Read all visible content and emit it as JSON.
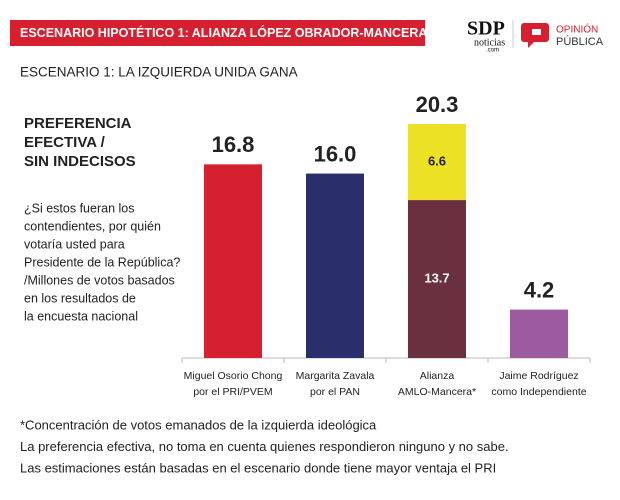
{
  "header": {
    "title": "ESCENARIO HIPOTÉTICO 1: ALIANZA LÓPEZ OBRADOR-MANCERA",
    "logo_sdp": [
      "SDP",
      "noticias",
      ".com"
    ],
    "logo_op": [
      "OPINIÓN",
      "PÚBLICA"
    ]
  },
  "chart_data": {
    "type": "bar",
    "title": "ESCENARIO 1: LA IZQUIERDA UNIDA GANA",
    "heading": [
      "PREFERENCIA",
      "EFECTIVA /",
      "SIN INDECISOS"
    ],
    "question": [
      "¿Si estos fueran los",
      "contendientes, por quién",
      "votaría usted para",
      "Presidente de la República?",
      "/Millones de votos basados",
      "en los resultados de",
      "la encuesta nacional"
    ],
    "categories": [
      [
        "Miguel Osorio Chong",
        "por el PRI/PVEM"
      ],
      [
        "Margarita Zavala",
        "por el PAN"
      ],
      [
        "Alianza",
        "AMLO-Mancera*"
      ],
      [
        "Jaime Rodríguez",
        "como Independiente"
      ]
    ],
    "series": [
      {
        "values": [
          16.8,
          16.0,
          13.7,
          4.2
        ],
        "value_labels": [
          "16.8",
          "16.0",
          "13.7",
          "4.2"
        ],
        "colors": [
          "#d7202f",
          "#2a2f6b",
          "#6b3040",
          "#9c5aa0"
        ]
      },
      {
        "values": [
          null,
          null,
          6.6,
          null
        ],
        "color": "#ece125"
      }
    ],
    "stack_totals": [
      null,
      null,
      20.3,
      null
    ]
  },
  "footnotes": [
    "*Concentración de votos emanados de la izquierda ideológica",
    "La preferencia efectiva, no toma en cuenta quienes respondieron ninguno y no sabe.",
    "Las estimaciones están basadas en el escenario donde tiene mayor ventaja el PRI"
  ]
}
